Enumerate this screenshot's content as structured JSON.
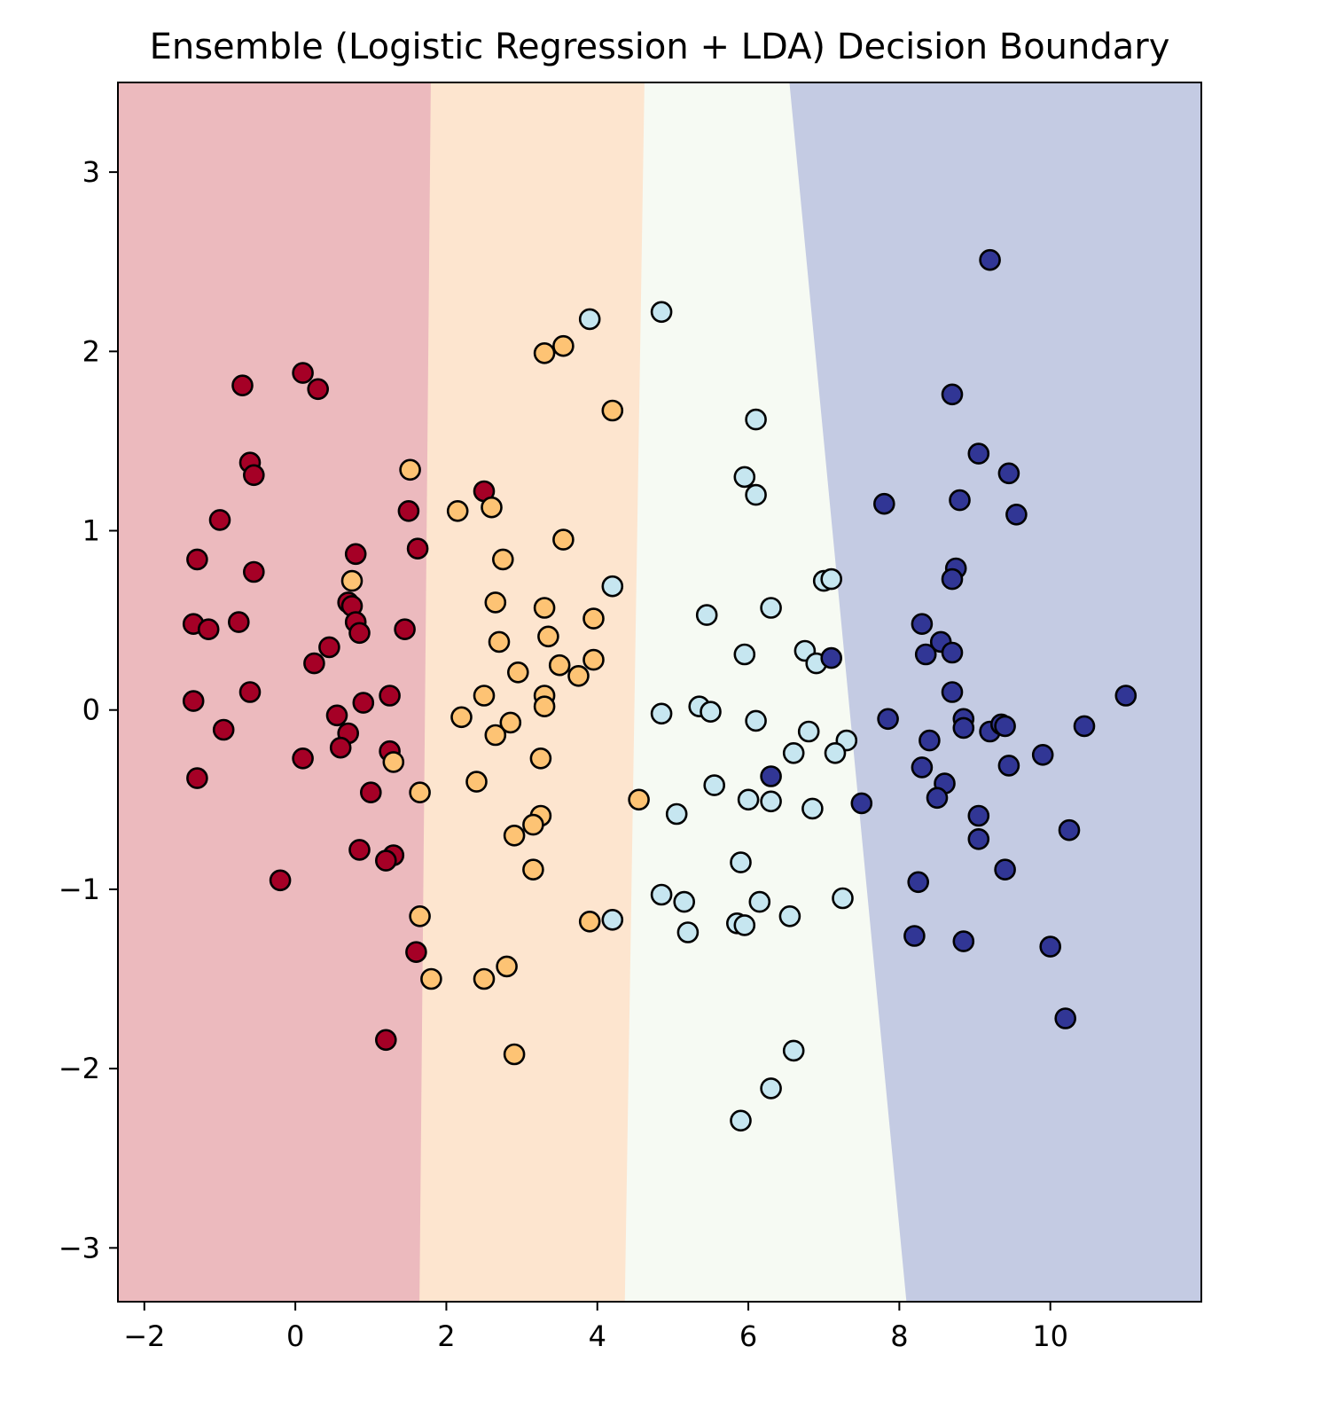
{
  "chart_data": {
    "type": "scatter",
    "title": "Ensemble (Logistic Regression + LDA) Decision Boundary",
    "xlim": [
      -2.35,
      12.0
    ],
    "ylim": [
      -3.3,
      3.5
    ],
    "x_ticks": [
      -2,
      0,
      2,
      4,
      6,
      8,
      10
    ],
    "x_tick_labels": [
      "−2",
      "0",
      "2",
      "4",
      "6",
      "8",
      "10"
    ],
    "y_ticks": [
      -3,
      -2,
      -1,
      0,
      1,
      2,
      3
    ],
    "y_tick_labels": [
      "−3",
      "−2",
      "−1",
      "0",
      "1",
      "2",
      "3"
    ],
    "grid": false,
    "regions": [
      {
        "color": "#ecbabe",
        "boundary": null
      },
      {
        "color": "#fde5cf",
        "boundary": {
          "top": 1.8,
          "bottom": 1.65
        }
      },
      {
        "color": "#f6faf3",
        "boundary": {
          "top": 4.63,
          "bottom": 4.37
        }
      },
      {
        "color": "#c4cbe3",
        "boundary": {
          "top": 6.55,
          "bottom": 8.1
        }
      }
    ],
    "series": [
      {
        "color": "#a50026",
        "points": [
          [
            -0.7,
            1.81
          ],
          [
            0.1,
            1.88
          ],
          [
            0.3,
            1.79
          ],
          [
            -0.6,
            1.38
          ],
          [
            -0.55,
            1.31
          ],
          [
            -1.0,
            1.06
          ],
          [
            -1.3,
            0.84
          ],
          [
            -0.55,
            0.77
          ],
          [
            -1.35,
            0.48
          ],
          [
            -1.15,
            0.45
          ],
          [
            -0.75,
            0.49
          ],
          [
            -0.6,
            0.1
          ],
          [
            -1.35,
            0.05
          ],
          [
            -0.95,
            -0.11
          ],
          [
            -1.3,
            -0.38
          ],
          [
            0.25,
            0.26
          ],
          [
            0.45,
            0.35
          ],
          [
            0.7,
            0.6
          ],
          [
            0.8,
            0.87
          ],
          [
            0.75,
            0.58
          ],
          [
            0.8,
            0.49
          ],
          [
            0.85,
            0.43
          ],
          [
            1.45,
            0.45
          ],
          [
            1.5,
            1.11
          ],
          [
            1.62,
            0.9
          ],
          [
            2.5,
            1.22
          ],
          [
            0.55,
            -0.03
          ],
          [
            0.7,
            -0.13
          ],
          [
            0.9,
            0.04
          ],
          [
            1.25,
            0.08
          ],
          [
            0.1,
            -0.27
          ],
          [
            0.6,
            -0.21
          ],
          [
            1.25,
            -0.23
          ],
          [
            1.0,
            -0.46
          ],
          [
            0.85,
            -0.78
          ],
          [
            1.3,
            -0.81
          ],
          [
            1.2,
            -0.84
          ],
          [
            -0.2,
            -0.95
          ],
          [
            1.6,
            -1.35
          ],
          [
            1.2,
            -1.84
          ]
        ]
      },
      {
        "color": "#fdc374",
        "points": [
          [
            3.3,
            1.99
          ],
          [
            3.55,
            2.03
          ],
          [
            4.2,
            1.67
          ],
          [
            1.52,
            1.34
          ],
          [
            2.15,
            1.11
          ],
          [
            2.6,
            1.13
          ],
          [
            3.55,
            0.95
          ],
          [
            2.75,
            0.84
          ],
          [
            0.75,
            0.72
          ],
          [
            2.65,
            0.6
          ],
          [
            3.3,
            0.57
          ],
          [
            3.95,
            0.51
          ],
          [
            2.7,
            0.38
          ],
          [
            3.35,
            0.41
          ],
          [
            3.5,
            0.25
          ],
          [
            3.95,
            0.28
          ],
          [
            2.95,
            0.21
          ],
          [
            3.75,
            0.19
          ],
          [
            2.5,
            0.08
          ],
          [
            3.3,
            0.08
          ],
          [
            3.3,
            0.02
          ],
          [
            2.2,
            -0.04
          ],
          [
            2.85,
            -0.07
          ],
          [
            2.65,
            -0.14
          ],
          [
            3.25,
            -0.27
          ],
          [
            1.3,
            -0.29
          ],
          [
            1.65,
            -0.46
          ],
          [
            2.4,
            -0.4
          ],
          [
            4.55,
            -0.5
          ],
          [
            3.25,
            -0.59
          ],
          [
            3.15,
            -0.64
          ],
          [
            2.9,
            -0.7
          ],
          [
            3.15,
            -0.89
          ],
          [
            1.65,
            -1.15
          ],
          [
            3.9,
            -1.18
          ],
          [
            1.8,
            -1.5
          ],
          [
            2.5,
            -1.5
          ],
          [
            2.8,
            -1.43
          ],
          [
            2.9,
            -1.92
          ]
        ]
      },
      {
        "color": "#c6e6f0",
        "points": [
          [
            3.9,
            2.18
          ],
          [
            4.85,
            2.22
          ],
          [
            6.1,
            1.62
          ],
          [
            5.95,
            1.3
          ],
          [
            6.1,
            1.2
          ],
          [
            4.2,
            0.69
          ],
          [
            5.45,
            0.53
          ],
          [
            6.3,
            0.57
          ],
          [
            7.0,
            0.72
          ],
          [
            7.1,
            0.73
          ],
          [
            5.95,
            0.31
          ],
          [
            6.75,
            0.33
          ],
          [
            6.9,
            0.26
          ],
          [
            5.35,
            0.02
          ],
          [
            5.5,
            -0.01
          ],
          [
            4.85,
            -0.02
          ],
          [
            6.1,
            -0.06
          ],
          [
            6.8,
            -0.12
          ],
          [
            7.3,
            -0.17
          ],
          [
            7.15,
            -0.24
          ],
          [
            6.6,
            -0.24
          ],
          [
            5.55,
            -0.42
          ],
          [
            6.0,
            -0.5
          ],
          [
            6.3,
            -0.51
          ],
          [
            6.85,
            -0.55
          ],
          [
            5.05,
            -0.58
          ],
          [
            5.9,
            -0.85
          ],
          [
            4.85,
            -1.03
          ],
          [
            5.15,
            -1.07
          ],
          [
            6.15,
            -1.07
          ],
          [
            6.55,
            -1.15
          ],
          [
            7.25,
            -1.05
          ],
          [
            4.2,
            -1.17
          ],
          [
            5.85,
            -1.19
          ],
          [
            5.95,
            -1.2
          ],
          [
            5.2,
            -1.24
          ],
          [
            6.6,
            -1.9
          ],
          [
            6.3,
            -2.11
          ],
          [
            5.9,
            -2.29
          ]
        ]
      },
      {
        "color": "#313695",
        "points": [
          [
            9.2,
            2.51
          ],
          [
            8.7,
            1.76
          ],
          [
            9.05,
            1.43
          ],
          [
            9.45,
            1.32
          ],
          [
            8.8,
            1.17
          ],
          [
            9.55,
            1.09
          ],
          [
            7.8,
            1.15
          ],
          [
            8.75,
            0.79
          ],
          [
            8.7,
            0.73
          ],
          [
            8.3,
            0.48
          ],
          [
            8.55,
            0.38
          ],
          [
            8.35,
            0.31
          ],
          [
            8.7,
            0.32
          ],
          [
            7.1,
            0.29
          ],
          [
            8.7,
            0.1
          ],
          [
            11.0,
            0.08
          ],
          [
            7.85,
            -0.05
          ],
          [
            8.85,
            -0.05
          ],
          [
            8.85,
            -0.1
          ],
          [
            9.2,
            -0.12
          ],
          [
            9.35,
            -0.08
          ],
          [
            9.4,
            -0.09
          ],
          [
            10.45,
            -0.09
          ],
          [
            8.4,
            -0.17
          ],
          [
            9.9,
            -0.25
          ],
          [
            8.3,
            -0.32
          ],
          [
            9.45,
            -0.31
          ],
          [
            6.3,
            -0.37
          ],
          [
            8.6,
            -0.41
          ],
          [
            8.5,
            -0.49
          ],
          [
            7.5,
            -0.52
          ],
          [
            9.05,
            -0.59
          ],
          [
            10.25,
            -0.67
          ],
          [
            9.05,
            -0.72
          ],
          [
            8.25,
            -0.96
          ],
          [
            9.4,
            -0.89
          ],
          [
            8.2,
            -1.26
          ],
          [
            8.85,
            -1.29
          ],
          [
            10.0,
            -1.32
          ],
          [
            10.2,
            -1.72
          ]
        ]
      }
    ]
  }
}
